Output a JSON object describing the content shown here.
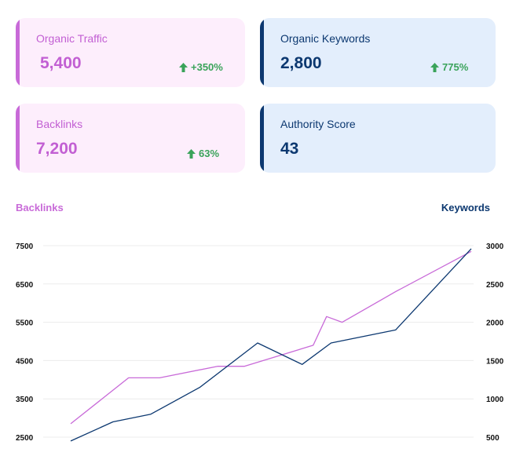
{
  "cards": [
    {
      "label": "Organic Traffic",
      "value": "5,400",
      "change": "+350%",
      "theme": "pink"
    },
    {
      "label": "Organic Keywords",
      "value": "2,800",
      "change": "775%",
      "theme": "blue"
    },
    {
      "label": "Backlinks",
      "value": "7,200",
      "change": "63%",
      "theme": "pink"
    },
    {
      "label": "Authority Score",
      "value": "43",
      "change": "",
      "theme": "blue"
    }
  ],
  "colors": {
    "backlinks": "#c86ad8",
    "keywords": "#0c3870",
    "positive": "#3aa35a"
  },
  "chart_data": {
    "type": "line",
    "title": "",
    "left_axis_label": "Backlinks",
    "right_axis_label": "Keywords",
    "left_ticks": [
      "7500",
      "6500",
      "5500",
      "4500",
      "3500",
      "2500"
    ],
    "right_ticks": [
      "3000",
      "2500",
      "2000",
      "1500",
      "1000",
      "500"
    ],
    "left_ylim": [
      2500,
      7500
    ],
    "right_ylim": [
      500,
      3000
    ],
    "grid": true,
    "series": [
      {
        "name": "Backlinks",
        "axis": "left",
        "color": "#c86ad8",
        "x": [
          0,
          1.3,
          2.0,
          3.3,
          3.9,
          5.45,
          5.75,
          6.1,
          7.3,
          9.0
        ],
        "values": [
          2850,
          4050,
          4050,
          4350,
          4350,
          4900,
          5650,
          5500,
          6300,
          7350
        ]
      },
      {
        "name": "Keywords",
        "axis": "right",
        "color": "#0c3870",
        "x": [
          0,
          0.95,
          1.8,
          2.9,
          4.2,
          5.2,
          5.85,
          7.3,
          9.0
        ],
        "values": [
          450,
          700,
          800,
          1150,
          1730,
          1450,
          1730,
          1900,
          2960
        ]
      }
    ]
  }
}
